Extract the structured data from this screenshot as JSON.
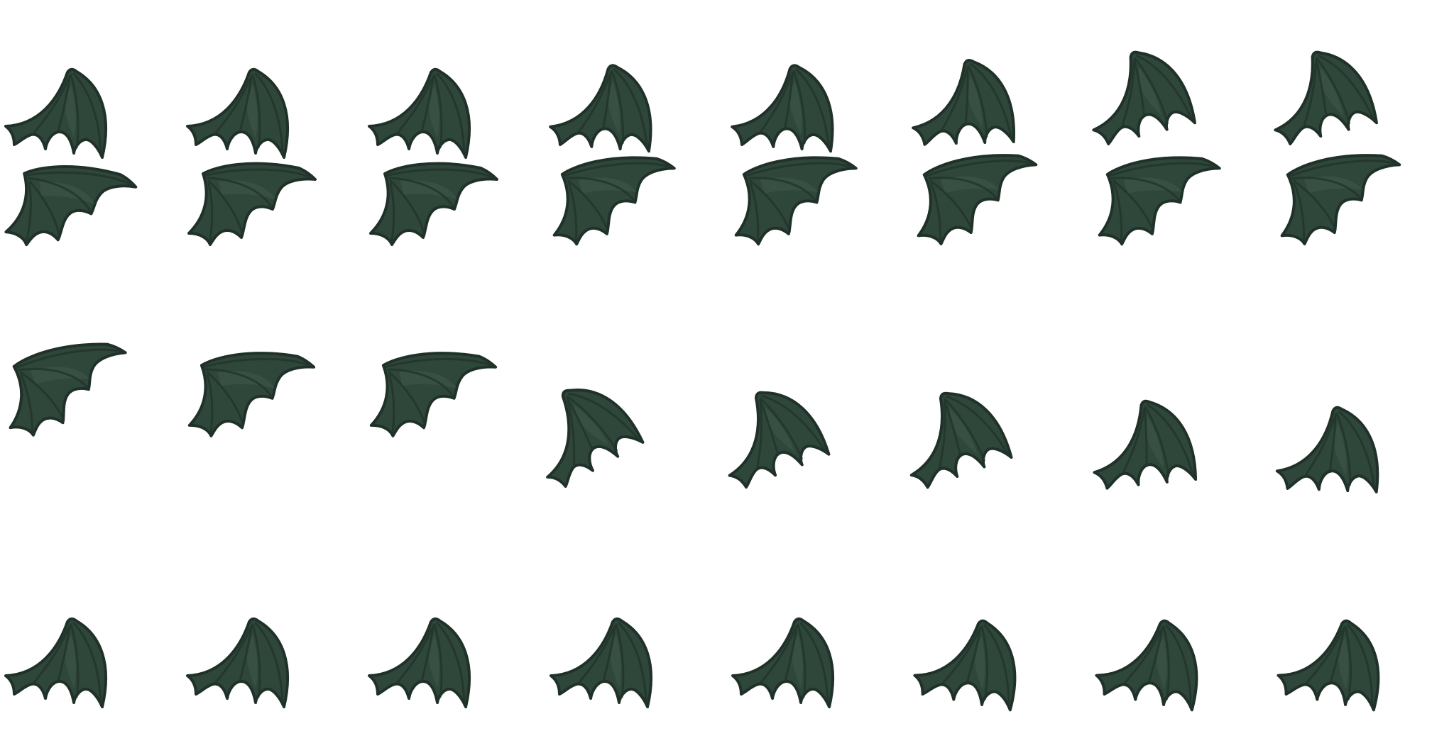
{
  "sprite_sheet": {
    "subject": "bat-wing",
    "grid": {
      "columns": 8,
      "rows": 4
    },
    "colors": {
      "membrane": "#2f463a",
      "outline": "#1f3128",
      "bone": "#22352b",
      "highlight": "#40594b",
      "background": "#ffffff"
    },
    "frames": [
      {
        "pose": "down",
        "rotate": 0
      },
      {
        "pose": "down",
        "rotate": 0
      },
      {
        "pose": "down",
        "rotate": 0
      },
      {
        "pose": "down",
        "rotate": -4
      },
      {
        "pose": "down",
        "rotate": -4
      },
      {
        "pose": "down",
        "rotate": -10
      },
      {
        "pose": "down",
        "rotate": -22
      },
      {
        "pose": "down",
        "rotate": -22
      },
      {
        "pose": "up",
        "rotate": 4
      },
      {
        "pose": "up",
        "rotate": 0
      },
      {
        "pose": "up",
        "rotate": 0
      },
      {
        "pose": "up",
        "rotate": -6
      },
      {
        "pose": "up",
        "rotate": -6
      },
      {
        "pose": "up",
        "rotate": -8
      },
      {
        "pose": "up",
        "rotate": -6
      },
      {
        "pose": "up",
        "rotate": -8
      },
      {
        "pose": "up",
        "rotate": -10
      },
      {
        "pose": "up",
        "rotate": -2
      },
      {
        "pose": "up",
        "rotate": -2
      },
      {
        "pose": "down",
        "rotate": -38
      },
      {
        "pose": "down",
        "rotate": -30
      },
      {
        "pose": "down",
        "rotate": -28
      },
      {
        "pose": "down",
        "rotate": -14
      },
      {
        "pose": "down",
        "rotate": -6
      },
      {
        "pose": "down",
        "rotate": 0
      },
      {
        "pose": "down",
        "rotate": 0
      },
      {
        "pose": "down",
        "rotate": 0
      },
      {
        "pose": "down",
        "rotate": 0
      },
      {
        "pose": "down",
        "rotate": 0
      },
      {
        "pose": "down",
        "rotate": 2
      },
      {
        "pose": "down",
        "rotate": 2
      },
      {
        "pose": "down",
        "rotate": 2
      }
    ]
  }
}
